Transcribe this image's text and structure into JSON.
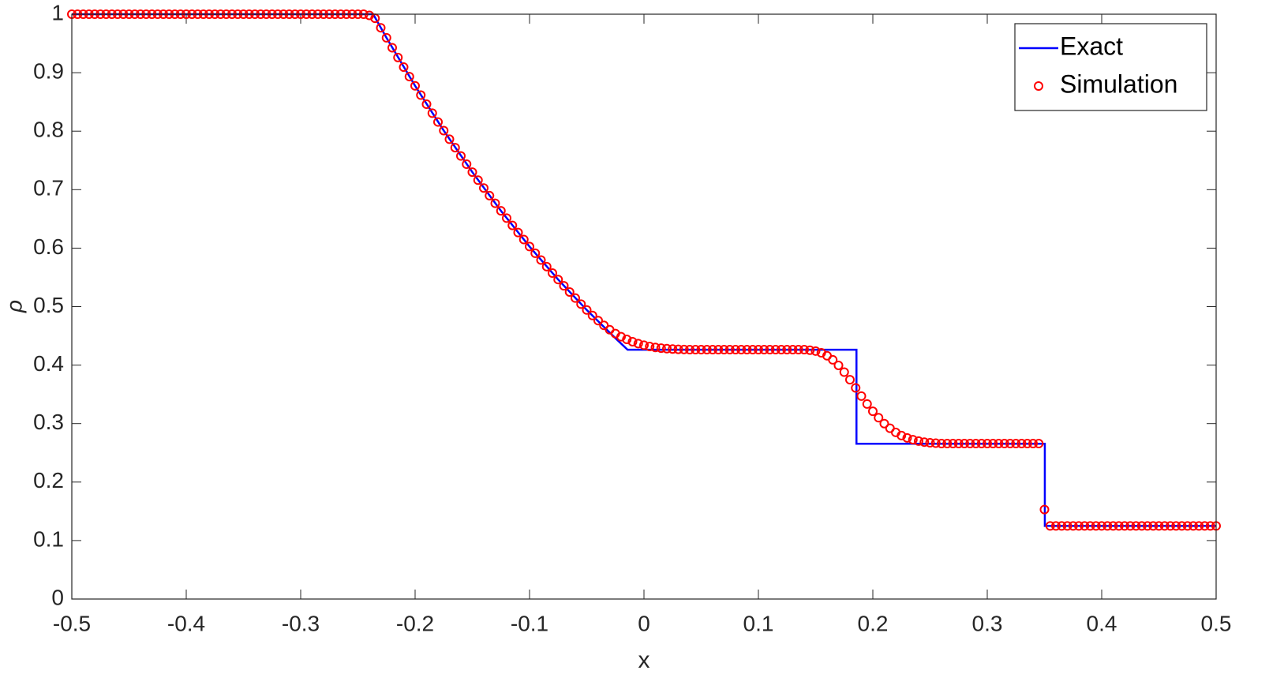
{
  "chart_data": {
    "type": "line",
    "xlabel": "x",
    "ylabel": "ρ",
    "xlim": [
      -0.5,
      0.5
    ],
    "xticks": [
      -0.5,
      -0.4,
      -0.3,
      -0.2,
      -0.1,
      0,
      0.1,
      0.2,
      0.3,
      0.4,
      0.5
    ],
    "ylim": [
      0,
      1
    ],
    "yticks": [
      0,
      0.1,
      0.2,
      0.3,
      0.4,
      0.5,
      0.6,
      0.7,
      0.8,
      0.9,
      1
    ],
    "grid": false,
    "legend": "upper right",
    "series": [
      {
        "name": "Exact",
        "color": "#0000ff",
        "marker": "none",
        "x": [
          -0.5,
          -0.2366,
          -0.225,
          -0.2,
          -0.175,
          -0.15,
          -0.125,
          -0.1,
          -0.075,
          -0.05,
          -0.025,
          -0.0143,
          0.1857,
          0.1857,
          0.3503,
          0.3503,
          0.5
        ],
        "values": [
          1,
          1,
          0.9597,
          0.8775,
          0.801,
          0.73,
          0.6638,
          0.6027,
          0.5463,
          0.4942,
          0.4461,
          0.4263,
          0.4263,
          0.2656,
          0.2656,
          0.125,
          0.125
        ]
      },
      {
        "name": "Simulation",
        "color": "#ff0000",
        "marker": "circle",
        "x": [
          -0.5,
          -0.495,
          -0.49,
          -0.485,
          -0.48,
          -0.475,
          -0.47,
          -0.465,
          -0.46,
          -0.455,
          -0.45,
          -0.445,
          -0.44,
          -0.435,
          -0.43,
          -0.425,
          -0.42,
          -0.415,
          -0.41,
          -0.405,
          -0.4,
          -0.395,
          -0.39,
          -0.385,
          -0.38,
          -0.375,
          -0.37,
          -0.365,
          -0.36,
          -0.355,
          -0.35,
          -0.345,
          -0.34,
          -0.335,
          -0.33,
          -0.325,
          -0.32,
          -0.315,
          -0.31,
          -0.305,
          -0.3,
          -0.295,
          -0.29,
          -0.285,
          -0.28,
          -0.275,
          -0.27,
          -0.265,
          -0.26,
          -0.255,
          -0.25,
          -0.245,
          -0.24,
          -0.235,
          -0.23,
          -0.225,
          -0.22,
          -0.215,
          -0.21,
          -0.205,
          -0.2,
          -0.195,
          -0.19,
          -0.185,
          -0.18,
          -0.175,
          -0.17,
          -0.165,
          -0.16,
          -0.155,
          -0.15,
          -0.145,
          -0.14,
          -0.135,
          -0.13,
          -0.125,
          -0.12,
          -0.115,
          -0.11,
          -0.105,
          -0.1,
          -0.095,
          -0.09,
          -0.085,
          -0.08,
          -0.075,
          -0.07,
          -0.065,
          -0.06,
          -0.055,
          -0.05,
          -0.045,
          -0.04,
          -0.035,
          -0.03,
          -0.025,
          -0.02,
          -0.015,
          -0.01,
          -0.005,
          0,
          0.005,
          0.01,
          0.015,
          0.02,
          0.025,
          0.03,
          0.035,
          0.04,
          0.045,
          0.05,
          0.055,
          0.06,
          0.065,
          0.07,
          0.075,
          0.08,
          0.085,
          0.09,
          0.095,
          0.1,
          0.105,
          0.11,
          0.115,
          0.12,
          0.125,
          0.13,
          0.135,
          0.14,
          0.145,
          0.15,
          0.155,
          0.16,
          0.165,
          0.17,
          0.175,
          0.18,
          0.185,
          0.19,
          0.195,
          0.2,
          0.205,
          0.21,
          0.215,
          0.22,
          0.225,
          0.23,
          0.235,
          0.24,
          0.245,
          0.25,
          0.255,
          0.26,
          0.265,
          0.27,
          0.275,
          0.28,
          0.285,
          0.29,
          0.295,
          0.3,
          0.305,
          0.31,
          0.315,
          0.32,
          0.325,
          0.33,
          0.335,
          0.34,
          0.345,
          0.35,
          0.355,
          0.36,
          0.365,
          0.37,
          0.375,
          0.38,
          0.385,
          0.39,
          0.395,
          0.4,
          0.405,
          0.41,
          0.415,
          0.42,
          0.425,
          0.43,
          0.435,
          0.44,
          0.445,
          0.45,
          0.455,
          0.46,
          0.465,
          0.47,
          0.475,
          0.48,
          0.485,
          0.49,
          0.495,
          0.5
        ],
        "values": [
          1,
          1,
          1,
          1,
          1,
          1,
          1,
          1,
          1,
          1,
          1,
          1,
          1,
          1,
          1,
          1,
          1,
          1,
          1,
          1,
          1,
          1,
          1,
          1,
          1,
          1,
          1,
          1,
          1,
          1,
          1,
          1,
          1,
          1,
          1,
          1,
          1,
          1,
          1,
          1,
          1,
          1,
          1,
          1,
          1,
          1,
          1,
          1,
          1,
          1,
          1,
          1,
          0.998,
          0.993,
          0.9768,
          0.9597,
          0.9427,
          0.926,
          0.9095,
          0.8933,
          0.8775,
          0.8616,
          0.8461,
          0.8308,
          0.8157,
          0.801,
          0.7862,
          0.7718,
          0.7576,
          0.7436,
          0.73,
          0.7162,
          0.7028,
          0.6897,
          0.6767,
          0.6638,
          0.6513,
          0.6389,
          0.6267,
          0.6147,
          0.6027,
          0.5912,
          0.5797,
          0.5684,
          0.5573,
          0.5463,
          0.5356,
          0.525,
          0.5146,
          0.5043,
          0.4942,
          0.4848,
          0.476,
          0.468,
          0.4605,
          0.454,
          0.4485,
          0.444,
          0.44,
          0.4368,
          0.434,
          0.4318,
          0.4302,
          0.429,
          0.4281,
          0.4275,
          0.427,
          0.4267,
          0.4264,
          0.4264,
          0.4264,
          0.4264,
          0.4264,
          0.4264,
          0.4264,
          0.4264,
          0.4264,
          0.4264,
          0.4264,
          0.4264,
          0.4264,
          0.4264,
          0.4264,
          0.4264,
          0.4264,
          0.4264,
          0.4264,
          0.4264,
          0.4264,
          0.4255,
          0.424,
          0.421,
          0.416,
          0.409,
          0.3995,
          0.388,
          0.375,
          0.361,
          0.347,
          0.3335,
          0.321,
          0.31,
          0.3,
          0.292,
          0.285,
          0.2795,
          0.2755,
          0.2725,
          0.27,
          0.2683,
          0.2672,
          0.2665,
          0.2658,
          0.2658,
          0.2658,
          0.2658,
          0.2658,
          0.2658,
          0.2658,
          0.2658,
          0.2658,
          0.2658,
          0.2658,
          0.2658,
          0.2658,
          0.2658,
          0.2658,
          0.2658,
          0.2658,
          0.2658,
          0.153,
          0.125,
          0.125,
          0.125,
          0.125,
          0.125,
          0.125,
          0.125,
          0.125,
          0.125,
          0.125,
          0.125,
          0.125,
          0.125,
          0.125,
          0.125,
          0.125,
          0.125,
          0.125,
          0.125,
          0.125,
          0.125,
          0.125,
          0.125,
          0.125,
          0.125,
          0.125,
          0.125,
          0.125,
          0.125,
          0.125
        ]
      }
    ]
  }
}
